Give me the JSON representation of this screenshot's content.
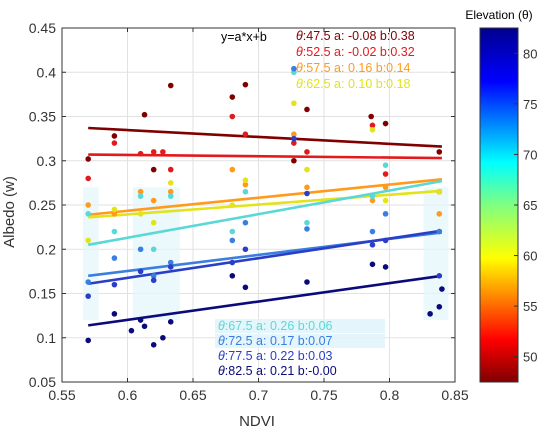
{
  "chart_data": {
    "type": "scatter",
    "xlabel": "NDVI",
    "ylabel": "Albedo (w)",
    "xlim": [
      0.55,
      0.85
    ],
    "ylim": [
      0.05,
      0.45
    ],
    "xticks": [
      0.55,
      0.6,
      0.65,
      0.7,
      0.75,
      0.8,
      0.85
    ],
    "yticks": [
      0.05,
      0.1,
      0.15,
      0.2,
      0.25,
      0.3,
      0.35,
      0.4,
      0.45
    ],
    "xtick_labels": [
      "0.55",
      "0.6",
      "0.65",
      "0.7",
      "0.75",
      "0.8",
      "0.85"
    ],
    "ytick_labels": [
      "0.05",
      "0.1",
      "0.15",
      "0.2",
      "0.25",
      "0.3",
      "0.35",
      "0.4",
      "0.45"
    ],
    "equation_label": "y=a*x+b",
    "colorbar": {
      "title": "Elevation (θ)",
      "range": [
        47.5,
        82.5
      ],
      "ticks": [
        50,
        55,
        60,
        65,
        70,
        75,
        80
      ],
      "tick_labels": [
        "50",
        "55",
        "60",
        "65",
        "70",
        "75",
        "80"
      ],
      "colormap": "jet"
    },
    "series": [
      {
        "theta": "47.5",
        "a": "-0.08",
        "b": "0.38",
        "legend": "θ:47.5  a: -0.08  b:0.38",
        "color": "#800000",
        "x0": 0.57,
        "x1": 0.84,
        "y0": 0.337,
        "y1": 0.316,
        "points": [
          [
            0.57,
            0.302
          ],
          [
            0.59,
            0.328
          ],
          [
            0.613,
            0.352
          ],
          [
            0.62,
            0.29
          ],
          [
            0.633,
            0.385
          ],
          [
            0.68,
            0.372
          ],
          [
            0.69,
            0.386
          ],
          [
            0.727,
            0.3
          ],
          [
            0.737,
            0.358
          ],
          [
            0.786,
            0.35
          ],
          [
            0.797,
            0.342
          ],
          [
            0.838,
            0.31
          ]
        ]
      },
      {
        "theta": "52.5",
        "a": "-0.02",
        "b": "0.32",
        "legend": "θ:52.5  a: -0.02  b:0.32",
        "color": "#e31a1c",
        "x0": 0.57,
        "x1": 0.84,
        "y0": 0.307,
        "y1": 0.303,
        "points": [
          [
            0.57,
            0.28
          ],
          [
            0.59,
            0.32
          ],
          [
            0.61,
            0.308
          ],
          [
            0.62,
            0.31
          ],
          [
            0.627,
            0.31
          ],
          [
            0.633,
            0.29
          ],
          [
            0.68,
            0.35
          ],
          [
            0.69,
            0.33
          ],
          [
            0.727,
            0.32
          ],
          [
            0.737,
            0.31
          ],
          [
            0.787,
            0.34
          ],
          [
            0.797,
            0.285
          ],
          [
            0.838,
            0.265
          ]
        ]
      },
      {
        "theta": "57.5",
        "a": "0.16",
        "b": "0.14",
        "legend": "θ:57.5  a: 0.16  b:0.14",
        "color": "#ff9a1a",
        "x0": 0.57,
        "x1": 0.84,
        "y0": 0.239,
        "y1": 0.279,
        "points": [
          [
            0.57,
            0.25
          ],
          [
            0.59,
            0.24
          ],
          [
            0.61,
            0.265
          ],
          [
            0.62,
            0.255
          ],
          [
            0.633,
            0.265
          ],
          [
            0.68,
            0.29
          ],
          [
            0.69,
            0.273
          ],
          [
            0.727,
            0.33
          ],
          [
            0.737,
            0.27
          ],
          [
            0.787,
            0.255
          ],
          [
            0.797,
            0.27
          ],
          [
            0.838,
            0.24
          ]
        ]
      },
      {
        "theta": "62.5",
        "a": "0.10",
        "b": "0.18",
        "legend": "θ:62.5  a: 0.10  b:0.18",
        "color": "#e3e31a",
        "x0": 0.57,
        "x1": 0.84,
        "y0": 0.236,
        "y1": 0.266,
        "points": [
          [
            0.57,
            0.21
          ],
          [
            0.59,
            0.245
          ],
          [
            0.61,
            0.24
          ],
          [
            0.62,
            0.23
          ],
          [
            0.633,
            0.275
          ],
          [
            0.68,
            0.25
          ],
          [
            0.69,
            0.278
          ],
          [
            0.727,
            0.365
          ],
          [
            0.737,
            0.29
          ],
          [
            0.787,
            0.335
          ],
          [
            0.797,
            0.255
          ],
          [
            0.838,
            0.265
          ]
        ]
      },
      {
        "theta": "67.5",
        "a": "0.26",
        "b": "0.06",
        "legend": "θ:67.5  a: 0.26  b:0.06",
        "color": "#5ad8d8",
        "x0": 0.57,
        "x1": 0.84,
        "y0": 0.205,
        "y1": 0.277,
        "points": [
          [
            0.57,
            0.24
          ],
          [
            0.59,
            0.22
          ],
          [
            0.61,
            0.26
          ],
          [
            0.62,
            0.2
          ],
          [
            0.633,
            0.26
          ],
          [
            0.68,
            0.22
          ],
          [
            0.69,
            0.265
          ],
          [
            0.727,
            0.4
          ],
          [
            0.737,
            0.23
          ],
          [
            0.787,
            0.26
          ],
          [
            0.797,
            0.295
          ],
          [
            0.838,
            0.22
          ]
        ]
      },
      {
        "theta": "72.5",
        "a": "0.17",
        "b": "0.07",
        "legend": "θ:72.5  a: 0.17  b:0.07",
        "color": "#3a7ee0",
        "x0": 0.57,
        "x1": 0.84,
        "y0": 0.17,
        "y1": 0.219,
        "points": [
          [
            0.57,
            0.163
          ],
          [
            0.59,
            0.19
          ],
          [
            0.61,
            0.2
          ],
          [
            0.62,
            0.17
          ],
          [
            0.633,
            0.185
          ],
          [
            0.68,
            0.21
          ],
          [
            0.69,
            0.23
          ],
          [
            0.727,
            0.404
          ],
          [
            0.737,
            0.223
          ],
          [
            0.787,
            0.22
          ],
          [
            0.797,
            0.24
          ],
          [
            0.838,
            0.22
          ]
        ]
      },
      {
        "theta": "77.5",
        "a": "0.22",
        "b": "0.03",
        "legend": "θ:77.5  a: 0.22  b:0.03",
        "color": "#2a3ec8",
        "x0": 0.57,
        "x1": 0.84,
        "y0": 0.161,
        "y1": 0.221,
        "points": [
          [
            0.57,
            0.147
          ],
          [
            0.59,
            0.16
          ],
          [
            0.61,
            0.175
          ],
          [
            0.62,
            0.165
          ],
          [
            0.633,
            0.18
          ],
          [
            0.68,
            0.185
          ],
          [
            0.69,
            0.2
          ],
          [
            0.727,
            0.325
          ],
          [
            0.737,
            0.263
          ],
          [
            0.787,
            0.205
          ],
          [
            0.797,
            0.21
          ],
          [
            0.838,
            0.17
          ]
        ]
      },
      {
        "theta": "82.5",
        "a": "0.21",
        "b": "-0.00",
        "legend": "θ:82.5  a: 0.21  b:-0.00",
        "color": "#0a0a7a",
        "x0": 0.57,
        "x1": 0.84,
        "y0": 0.114,
        "y1": 0.17,
        "points": [
          [
            0.57,
            0.097
          ],
          [
            0.59,
            0.127
          ],
          [
            0.603,
            0.108
          ],
          [
            0.61,
            0.12
          ],
          [
            0.613,
            0.113
          ],
          [
            0.62,
            0.092
          ],
          [
            0.627,
            0.1
          ],
          [
            0.633,
            0.118
          ],
          [
            0.68,
            0.17
          ],
          [
            0.69,
            0.157
          ],
          [
            0.737,
            0.163
          ],
          [
            0.787,
            0.183
          ],
          [
            0.797,
            0.18
          ],
          [
            0.831,
            0.127
          ],
          [
            0.838,
            0.135
          ],
          [
            0.84,
            0.155
          ]
        ]
      }
    ]
  }
}
